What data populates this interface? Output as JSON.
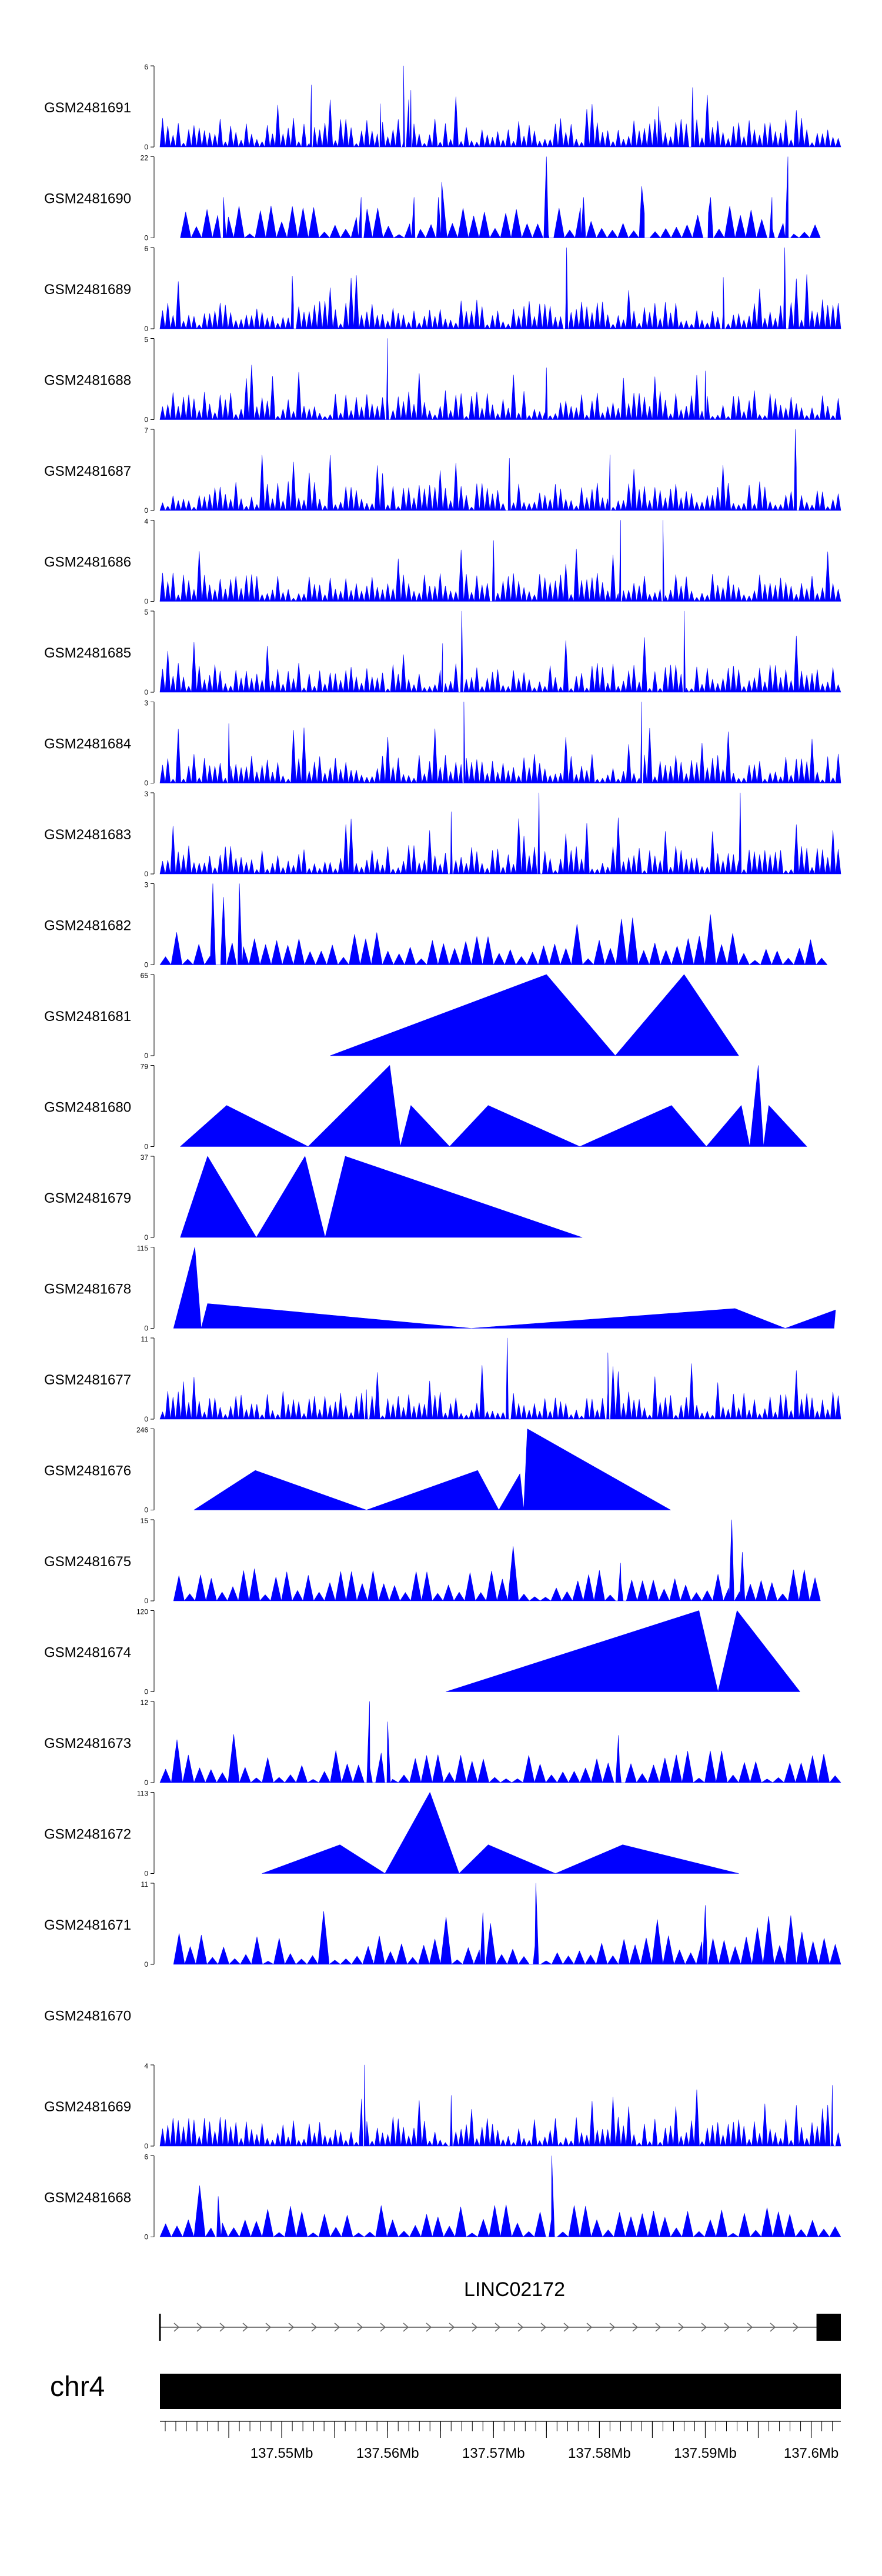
{
  "chart_data": {
    "type": "area",
    "title": "",
    "genome": {
      "chromosome": "chr4",
      "range_mb": [
        137.5385,
        137.6028
      ],
      "gene": {
        "name": "LINC02172",
        "start_mb": 137.5385,
        "end_mb": 137.6028,
        "strand": "+",
        "exons_mb": [
          [
            137.5385,
            137.5388
          ],
          [
            137.6005,
            137.6028
          ]
        ]
      },
      "axis_ticks_mb": [
        137.545,
        137.55,
        137.555,
        137.56,
        137.565,
        137.57,
        137.575,
        137.58,
        137.585,
        137.59,
        137.595,
        137.6
      ],
      "axis_tick_labels": [
        "137.55Mb",
        "137.56Mb",
        "137.57Mb",
        "137.58Mb",
        "137.59Mb",
        "137.6Mb"
      ]
    },
    "tracks": [
      {
        "name": "GSM2481691",
        "ymax": 6,
        "ymin": 0,
        "style": "dense",
        "coverage": [
          0.0,
          1.0
        ],
        "peaks": [
          [
            137.5528,
            4.6
          ],
          [
            137.5615,
            6.0
          ],
          [
            137.5622,
            4.2
          ],
          [
            137.5856,
            3.0
          ],
          [
            137.5888,
            4.4
          ],
          [
            137.5593,
            3.2
          ]
        ]
      },
      {
        "name": "GSM2481690",
        "ymax": 22,
        "ymin": 0,
        "style": "sparse",
        "coverage": [
          0.03,
          0.97
        ],
        "peaks": [
          [
            137.5445,
            11
          ],
          [
            137.5575,
            11
          ],
          [
            137.5625,
            11
          ],
          [
            137.5648,
            11
          ],
          [
            137.575,
            22
          ],
          [
            137.5785,
            11
          ],
          [
            137.584,
            14
          ],
          [
            137.5905,
            11
          ],
          [
            137.5963,
            11
          ],
          [
            137.5978,
            22
          ]
        ]
      },
      {
        "name": "GSM2481689",
        "ymax": 6,
        "ymin": 0,
        "style": "dense",
        "coverage": [
          0.0,
          1.0
        ],
        "peaks": [
          [
            137.5769,
            6.0
          ],
          [
            137.5917,
            3.8
          ],
          [
            137.5975,
            6.0
          ],
          [
            137.551,
            3.9
          ]
        ]
      },
      {
        "name": "GSM2481688",
        "ymax": 5,
        "ymin": 0,
        "style": "dense",
        "coverage": [
          0.0,
          1.0
        ],
        "peaks": [
          [
            137.56,
            5.0
          ],
          [
            137.575,
            3.2
          ],
          [
            137.59,
            3.0
          ]
        ]
      },
      {
        "name": "GSM2481687",
        "ymax": 7,
        "ymin": 0,
        "style": "dense",
        "coverage": [
          0.0,
          1.0
        ],
        "peaks": [
          [
            137.5985,
            7.0
          ],
          [
            137.5715,
            4.5
          ],
          [
            137.581,
            4.8
          ]
        ]
      },
      {
        "name": "GSM2481686",
        "ymax": 4,
        "ymin": 0,
        "style": "dense",
        "coverage": [
          0.0,
          1.0
        ],
        "peaks": [
          [
            137.582,
            4.0
          ],
          [
            137.586,
            4.0
          ],
          [
            137.57,
            3.0
          ]
        ]
      },
      {
        "name": "GSM2481685",
        "ymax": 5,
        "ymin": 0,
        "style": "dense",
        "coverage": [
          0.0,
          1.0
        ],
        "peaks": [
          [
            137.567,
            5.0
          ],
          [
            137.588,
            5.0
          ],
          [
            137.5652,
            3.0
          ]
        ]
      },
      {
        "name": "GSM2481684",
        "ymax": 3,
        "ymin": 0,
        "style": "dense",
        "coverage": [
          0.0,
          1.0
        ],
        "peaks": [
          [
            137.5672,
            3.0
          ],
          [
            137.584,
            3.0
          ],
          [
            137.545,
            2.2
          ]
        ]
      },
      {
        "name": "GSM2481683",
        "ymax": 3,
        "ymin": 0,
        "style": "dense",
        "coverage": [
          0.0,
          1.0
        ],
        "peaks": [
          [
            137.5743,
            3.0
          ],
          [
            137.5933,
            3.0
          ],
          [
            137.566,
            2.3
          ]
        ]
      },
      {
        "name": "GSM2481682",
        "ymax": 3,
        "ymin": 0,
        "style": "sparse-dense",
        "coverage": [
          0.0,
          0.98
        ],
        "peaks": [
          [
            137.5435,
            3.0
          ],
          [
            137.546,
            3.0
          ],
          [
            137.5445,
            2.5
          ]
        ]
      },
      {
        "name": "GSM2481681",
        "ymax": 65,
        "ymin": 0,
        "style": "triangles",
        "coverage": [
          0.25,
          0.85
        ],
        "peaks": [
          [
            137.575,
            65
          ],
          [
            137.588,
            65
          ]
        ]
      },
      {
        "name": "GSM2481680",
        "ymax": 79,
        "ymin": 0,
        "style": "triangles",
        "coverage": [
          0.03,
          0.95
        ],
        "peaks": [
          [
            137.5448,
            40
          ],
          [
            137.5602,
            79
          ],
          [
            137.5622,
            40
          ],
          [
            137.5695,
            40
          ],
          [
            137.5868,
            40
          ],
          [
            137.5934,
            40
          ],
          [
            137.595,
            79
          ],
          [
            137.596,
            40
          ]
        ]
      },
      {
        "name": "GSM2481679",
        "ymax": 37,
        "ymin": 0,
        "style": "triangles",
        "coverage": [
          0.03,
          0.62
        ],
        "peaks": [
          [
            137.543,
            37
          ],
          [
            137.5522,
            37
          ],
          [
            137.556,
            37
          ]
        ]
      },
      {
        "name": "GSM2481678",
        "ymax": 115,
        "ymin": 0,
        "style": "triangles",
        "coverage": [
          0.02,
          0.99
        ],
        "peaks": [
          [
            137.5418,
            115
          ],
          [
            137.543,
            35
          ],
          [
            137.5928,
            28
          ],
          [
            137.6023,
            26
          ]
        ]
      },
      {
        "name": "GSM2481677",
        "ymax": 11,
        "ymin": 0,
        "style": "dense",
        "coverage": [
          0.0,
          1.0
        ],
        "peaks": [
          [
            137.5713,
            11
          ],
          [
            137.5808,
            9
          ],
          [
            137.558,
            4
          ]
        ]
      },
      {
        "name": "GSM2481676",
        "ymax": 246,
        "ymin": 0,
        "style": "triangles",
        "coverage": [
          0.05,
          0.75
        ],
        "peaks": [
          [
            137.5475,
            120
          ],
          [
            137.5685,
            120
          ],
          [
            137.5732,
            246
          ],
          [
            137.5725,
            110
          ]
        ]
      },
      {
        "name": "GSM2481675",
        "ymax": 15,
        "ymin": 0,
        "style": "sparse-dense",
        "coverage": [
          0.02,
          0.97
        ],
        "peaks": [
          [
            137.5925,
            15
          ],
          [
            137.5935,
            9
          ],
          [
            137.582,
            7
          ]
        ]
      },
      {
        "name": "GSM2481674",
        "ymax": 120,
        "ymin": 0,
        "style": "triangles",
        "coverage": [
          0.42,
          0.94
        ],
        "peaks": [
          [
            137.5894,
            120
          ],
          [
            137.593,
            120
          ]
        ]
      },
      {
        "name": "GSM2481673",
        "ymax": 12,
        "ymin": 0,
        "style": "sparse-dense",
        "coverage": [
          0.0,
          1.0
        ],
        "peaks": [
          [
            137.5583,
            12
          ],
          [
            137.56,
            9
          ],
          [
            137.5818,
            7
          ]
        ]
      },
      {
        "name": "GSM2481672",
        "ymax": 113,
        "ymin": 0,
        "style": "triangles",
        "coverage": [
          0.15,
          0.85
        ],
        "peaks": [
          [
            137.5555,
            40
          ],
          [
            137.564,
            113
          ],
          [
            137.5695,
            40
          ],
          [
            137.5822,
            40
          ]
        ]
      },
      {
        "name": "GSM2481671",
        "ymax": 11,
        "ymin": 0,
        "style": "sparse-dense",
        "coverage": [
          0.02,
          1.0
        ],
        "peaks": [
          [
            137.574,
            11
          ],
          [
            137.59,
            8
          ],
          [
            137.569,
            7
          ]
        ]
      },
      {
        "name": "GSM2481670",
        "ymax": null,
        "ymin": null,
        "style": "empty",
        "coverage": [
          0,
          0
        ],
        "peaks": []
      },
      {
        "name": "GSM2481669",
        "ymax": 4,
        "ymin": 0,
        "style": "dense",
        "coverage": [
          0.0,
          1.0
        ],
        "peaks": [
          [
            137.5578,
            4.0
          ],
          [
            137.602,
            3.0
          ],
          [
            137.566,
            2.5
          ]
        ]
      },
      {
        "name": "GSM2481668",
        "ymax": 6,
        "ymin": 0,
        "style": "sparse-dense",
        "coverage": [
          0.0,
          1.0
        ],
        "peaks": [
          [
            137.5755,
            6.0
          ],
          [
            137.544,
            3.0
          ]
        ]
      }
    ]
  }
}
